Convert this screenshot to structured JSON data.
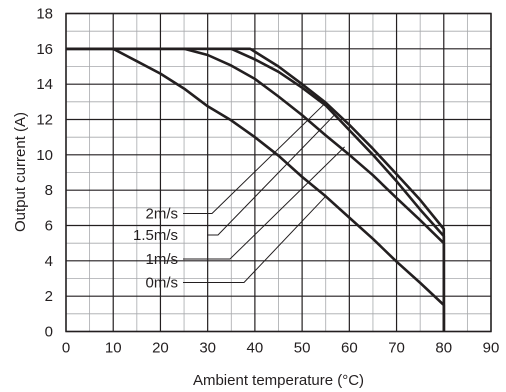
{
  "chart_data": {
    "type": "line",
    "title": "",
    "xlabel": "Ambient temperature (°C)",
    "ylabel": "Output current (A)",
    "xlim": [
      0,
      90
    ],
    "ylim": [
      0,
      18
    ],
    "x_ticks": [
      0,
      10,
      20,
      30,
      40,
      50,
      60,
      70,
      80,
      90
    ],
    "y_ticks": [
      0,
      2,
      4,
      6,
      8,
      10,
      12,
      14,
      16,
      18
    ],
    "grid": true,
    "minor_grid": true,
    "line_color": "#231f20",
    "grid_color": "#231f20",
    "minor_grid_color": "#a7a9ac",
    "series": [
      {
        "name": "2m/s",
        "x": [
          0,
          39,
          45,
          50,
          55,
          60,
          65,
          70,
          75,
          80,
          80
        ],
        "y": [
          16,
          16,
          15.0,
          14.0,
          12.95,
          11.7,
          10.35,
          8.9,
          7.45,
          5.8,
          0
        ]
      },
      {
        "name": "1.5m/s",
        "x": [
          0,
          35,
          40,
          45,
          50,
          55,
          60,
          65,
          70,
          75,
          80,
          80
        ],
        "y": [
          16,
          16,
          15.4,
          14.7,
          13.8,
          12.8,
          11.4,
          10.0,
          8.5,
          6.9,
          5.4,
          0
        ]
      },
      {
        "name": "1m/s",
        "x": [
          0,
          25,
          30,
          35,
          40,
          45,
          50,
          55,
          60,
          65,
          70,
          75,
          80,
          80
        ],
        "y": [
          16,
          16,
          15.65,
          15.05,
          14.3,
          13.3,
          12.25,
          11.1,
          10.0,
          8.85,
          7.55,
          6.3,
          5.0,
          0
        ]
      },
      {
        "name": "0m/s",
        "x": [
          0,
          10,
          15,
          20,
          25,
          30,
          35,
          40,
          45,
          50,
          55,
          60,
          65,
          70,
          75,
          80,
          80
        ],
        "y": [
          16,
          16,
          15.3,
          14.6,
          13.75,
          12.75,
          11.95,
          11.0,
          9.95,
          8.75,
          7.65,
          6.45,
          5.25,
          3.95,
          2.75,
          1.5,
          0
        ]
      }
    ],
    "legend": {
      "position": "left",
      "entries": [
        "2m/s",
        "1.5m/s",
        "1m/s",
        "0m/s"
      ],
      "leader_targets": [
        [
          55,
          12.95
        ],
        [
          57,
          12.3
        ],
        [
          59,
          10.45
        ],
        [
          55,
          7.65
        ]
      ]
    }
  }
}
